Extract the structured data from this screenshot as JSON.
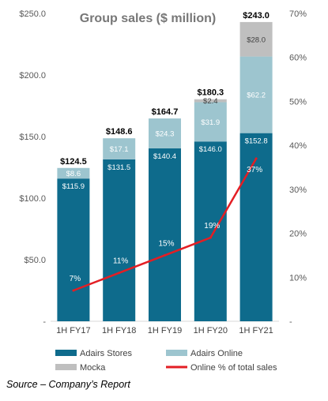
{
  "source_note": "Source – Company’s Report",
  "chart_data": {
    "type": "bar",
    "stacked": true,
    "title": "Group sales ($ million)",
    "categories": [
      "1H FY17",
      "1H FY18",
      "1H FY19",
      "1H FY20",
      "1H FY21"
    ],
    "series": [
      {
        "name": "Adairs Stores",
        "color": "#0e6b8c",
        "values": [
          115.9,
          131.5,
          140.4,
          146.0,
          152.8
        ],
        "labels": [
          "$115.9",
          "$131.5",
          "$140.4",
          "$146.0",
          "$152.8"
        ]
      },
      {
        "name": "Adairs Online",
        "color": "#9dc5cf",
        "values": [
          8.6,
          17.1,
          24.3,
          31.9,
          62.2
        ],
        "labels": [
          "$8.6",
          "$17.1",
          "$24.3",
          "$31.9",
          "$62.2"
        ]
      },
      {
        "name": "Mocka",
        "color": "#bfbfbf",
        "values": [
          0,
          0,
          0,
          2.4,
          28.0
        ],
        "labels": [
          "",
          "",
          "",
          "$2.4",
          "$28.0"
        ]
      }
    ],
    "totals": [
      124.5,
      148.6,
      164.7,
      180.3,
      243.0
    ],
    "total_labels": [
      "$124.5",
      "$148.6",
      "$164.7",
      "$180.3",
      "$243.0"
    ],
    "line_series": {
      "name": "Online % of total sales",
      "color": "#e31e24",
      "axis": "right",
      "values": [
        7,
        11,
        15,
        19,
        37
      ],
      "labels": [
        "7%",
        "11%",
        "15%",
        "19%",
        "37%"
      ]
    },
    "y_left": {
      "ticks": [
        "$250.0",
        "$200.0",
        "$150.0",
        "$100.0",
        "$50.0",
        "-"
      ],
      "values": [
        250,
        200,
        150,
        100,
        50,
        0
      ],
      "ylim": [
        0,
        250
      ]
    },
    "y_right": {
      "ticks": [
        "70%",
        "60%",
        "50%",
        "40%",
        "30%",
        "20%",
        "10%",
        "-"
      ],
      "values": [
        70,
        60,
        50,
        40,
        30,
        20,
        10,
        0
      ],
      "ylim": [
        0,
        70
      ]
    },
    "legend_position": "bottom",
    "grid": false
  }
}
